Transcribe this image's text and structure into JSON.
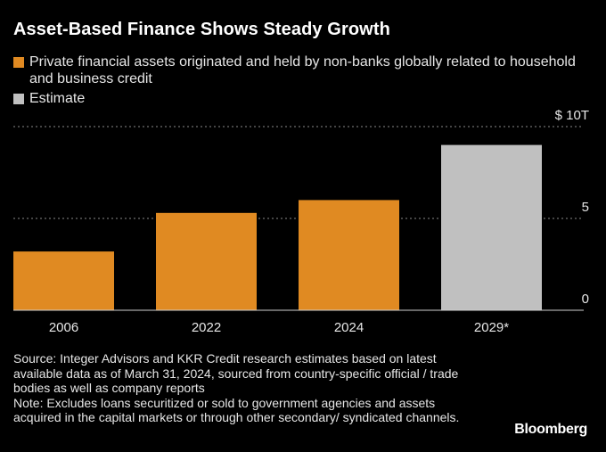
{
  "title": "Asset-Based Finance Shows Steady Growth",
  "legend": [
    {
      "label": "Private financial assets originated and held by non-banks globally related to household and business credit",
      "color": "#e08a22"
    },
    {
      "label": "Estimate",
      "color": "#c0c0c0"
    }
  ],
  "chart_data": {
    "type": "bar",
    "categories": [
      "2006",
      "2022",
      "2024",
      "2029*"
    ],
    "values": [
      3.2,
      5.3,
      6.0,
      9.0
    ],
    "colors": [
      "#e08a22",
      "#e08a22",
      "#e08a22",
      "#c0c0c0"
    ],
    "ylim": [
      0,
      10
    ],
    "yticks": [
      {
        "value": 10,
        "label": "$ 10T"
      },
      {
        "value": 5,
        "label": "5"
      },
      {
        "value": 0,
        "label": "0"
      }
    ],
    "grid": true
  },
  "source": {
    "source_line": "Source: Integer Advisors and KKR Credit research estimates based on latest available data as of March 31, 2024, sourced from country-specific official / trade bodies as well as company reports",
    "note_line": "Note: Excludes loans securitized or sold to government agencies and assets acquired in the capital markets or through other secondary/ syndicated channels."
  },
  "brand": "Bloomberg"
}
